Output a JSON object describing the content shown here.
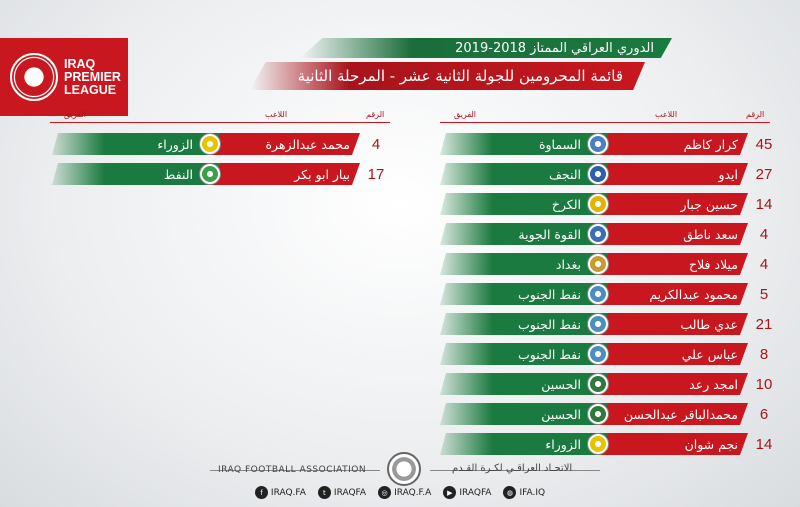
{
  "league_logo": {
    "lines": [
      "IRAQ",
      "PREMIER",
      "LEAGUE"
    ]
  },
  "title_main": "الدوري العراقي الممتاز 2018-2019",
  "title_sub": "قائمة المحرومين للجولة الثانية عشر - المرحلة الثانية",
  "headers": {
    "number": "الرقم",
    "player": "اللاعب",
    "team": "الفريق"
  },
  "colors": {
    "red": "#c8171f",
    "green": "#1b7a3f"
  },
  "right_table": [
    {
      "number": "45",
      "player": "كرار كاظم",
      "team": "السماوة",
      "badge_color": "#4a7fc1"
    },
    {
      "number": "27",
      "player": "ايدو",
      "team": "النجف",
      "badge_color": "#2b5fa8"
    },
    {
      "number": "14",
      "player": "حسين جبار",
      "team": "الكرخ",
      "badge_color": "#e2b400"
    },
    {
      "number": "4",
      "player": "سعد ناطق",
      "team": "القوة الجوية",
      "badge_color": "#3b6fb5"
    },
    {
      "number": "4",
      "player": "ميلاد فلاح",
      "team": "بغداد",
      "badge_color": "#c99a2e"
    },
    {
      "number": "5",
      "player": "محمود عبدالكريم",
      "team": "نفط الجنوب",
      "badge_color": "#4a8fc0"
    },
    {
      "number": "21",
      "player": "عدي طالب",
      "team": "نفط الجنوب",
      "badge_color": "#4a8fc0"
    },
    {
      "number": "8",
      "player": "عباس علي",
      "team": "نفط الجنوب",
      "badge_color": "#4a8fc0"
    },
    {
      "number": "10",
      "player": "امجد رعد",
      "team": "الحسين",
      "badge_color": "#2f7a3a"
    },
    {
      "number": "6",
      "player": "محمدالباقر عبدالحسن",
      "team": "الحسين",
      "badge_color": "#2f7a3a"
    },
    {
      "number": "14",
      "player": "نجم شوان",
      "team": "الزوراء",
      "badge_color": "#e8c400"
    }
  ],
  "left_table": [
    {
      "number": "4",
      "player": "محمد عبدالزهرة",
      "team": "الزوراء",
      "badge_color": "#e8c400"
    },
    {
      "number": "17",
      "player": "بيار ابو بكر",
      "team": "النفط",
      "badge_color": "#3aa04a"
    }
  ],
  "footer": {
    "left": "IRAQ FOOTBALL ASSOCIATION",
    "right": "الاتحـاد العراقـي لكـرة القـدم",
    "social": [
      {
        "icon": "facebook-icon",
        "glyph": "f",
        "label": "IRAQ.FA"
      },
      {
        "icon": "twitter-icon",
        "glyph": "t",
        "label": "IRAQFA"
      },
      {
        "icon": "instagram-icon",
        "glyph": "◎",
        "label": "IRAQ.F.A"
      },
      {
        "icon": "youtube-icon",
        "glyph": "▶",
        "label": "IRAQFA"
      },
      {
        "icon": "web-icon",
        "glyph": "◍",
        "label": "IFA.IQ"
      }
    ]
  }
}
